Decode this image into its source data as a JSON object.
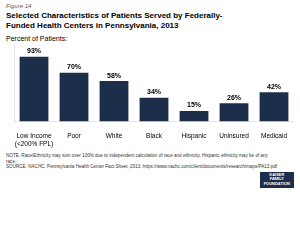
{
  "chart_data": {
    "type": "bar",
    "figure_label": "Figure 14",
    "title": [
      "Selected Characteristics of Patients Served by Federally-",
      "Funded Health Centers in Pennsylvania, 2013"
    ],
    "ylabel": "Percent of Patients:",
    "categories": [
      "Low Income\n(<200% FPL)",
      "Poor",
      "White",
      "Black",
      "Hispanic",
      "Uninsured",
      "Medicaid"
    ],
    "values": [
      93,
      70,
      58,
      34,
      15,
      26,
      42
    ],
    "value_labels": [
      "93%",
      "70%",
      "58%",
      "34%",
      "15%",
      "26%",
      "42%"
    ],
    "data_labels": true,
    "color": "#1c2e4a",
    "ylim": [
      0,
      110
    ],
    "grid": false,
    "tick_labels": "x",
    "annotations": [
      "NOTE: Race/Ethnicity may sum over 100% due to independent calculation of race and ethnicity. Hispanic ethnicity may be of any",
      "race.",
      "SOURCE: NACHC. Pennsylvania Health Center Fact Sheet, 2013. https://www.nachc.com/client/documents/research/maps/PA13.pdf"
    ],
    "logo": {
      "text": [
        "KAISER",
        "FAMILY",
        "FOUNDATION"
      ],
      "color": "#1c2e4a"
    }
  }
}
